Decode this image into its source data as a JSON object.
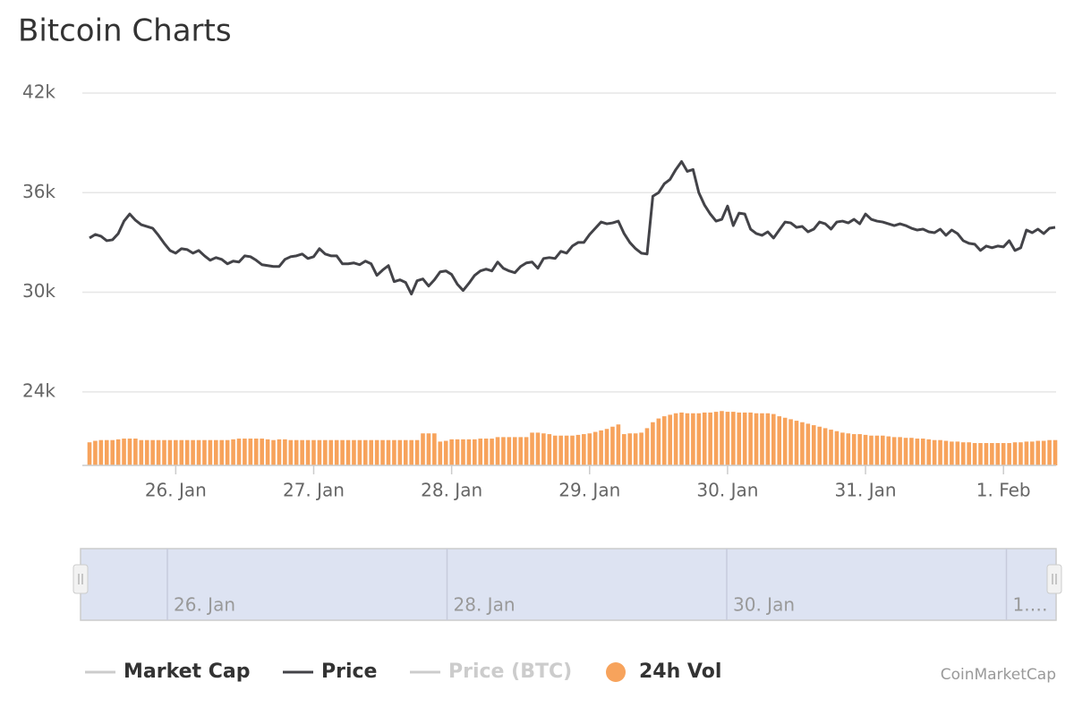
{
  "chart_data": {
    "type": "line",
    "title": "Bitcoin Charts",
    "credit": "CoinMarketCap",
    "categories": [
      null,
      null,
      null,
      null,
      null,
      null,
      null,
      null,
      null,
      null,
      null,
      null,
      null,
      null,
      null,
      "26. Jan",
      null,
      null,
      null,
      null,
      null,
      null,
      null,
      null,
      null,
      null,
      null,
      null,
      null,
      null,
      null,
      null,
      null,
      null,
      null,
      null,
      null,
      null,
      null,
      "27. Jan",
      null,
      null,
      null,
      null,
      null,
      null,
      null,
      null,
      null,
      null,
      null,
      null,
      null,
      null,
      null,
      null,
      null,
      null,
      null,
      null,
      null,
      null,
      null,
      "28. Jan",
      null,
      null,
      null,
      null,
      null,
      null,
      null,
      null,
      null,
      null,
      null,
      null,
      null,
      null,
      null,
      null,
      null,
      null,
      null,
      null,
      null,
      null,
      null,
      "29. Jan",
      null,
      null,
      null,
      null,
      null,
      null,
      null,
      null,
      null,
      null,
      null,
      null,
      null,
      null,
      null,
      null,
      null,
      null,
      null,
      null,
      null,
      null,
      null,
      "30. Jan",
      null,
      null,
      null,
      null,
      null,
      null,
      null,
      null,
      null,
      null,
      null,
      null,
      null,
      null,
      null,
      null,
      null,
      null,
      null,
      null,
      null,
      null,
      null,
      "31. Jan",
      null,
      null,
      null,
      null,
      null,
      null,
      null,
      null,
      null,
      null,
      null,
      null,
      null,
      null,
      null,
      null,
      null,
      null,
      null,
      null,
      null,
      null,
      null,
      "1. Feb",
      null,
      null,
      null,
      null,
      null,
      null,
      null,
      null,
      null
    ],
    "series": [
      {
        "name": "Market Cap",
        "type": "line",
        "color": "#cccccc",
        "enabled": true
      },
      {
        "name": "Price",
        "type": "line",
        "color": "#434348",
        "enabled": true,
        "values": [
          33268,
          33482,
          33375,
          33107,
          33161,
          33536,
          34286,
          34714,
          34339,
          34071,
          33964,
          33857,
          33429,
          32946,
          32518,
          32357,
          32625,
          32571,
          32357,
          32518,
          32196,
          31929,
          32089,
          31982,
          31714,
          31875,
          31821,
          32196,
          32143,
          31929,
          31661,
          31607,
          31554,
          31554,
          31982,
          32143,
          32196,
          32304,
          32036,
          32143,
          32625,
          32304,
          32196,
          32196,
          31714,
          31714,
          31768,
          31661,
          31875,
          31714,
          31018,
          31339,
          31607,
          30643,
          30750,
          30589,
          29893,
          30696,
          30804,
          30375,
          30750,
          31232,
          31286,
          31071,
          30482,
          30107,
          30536,
          31018,
          31286,
          31393,
          31286,
          31821,
          31446,
          31286,
          31179,
          31554,
          31768,
          31821,
          31446,
          32036,
          32089,
          32036,
          32464,
          32357,
          32786,
          33000,
          33000,
          33482,
          33857,
          34232,
          34125,
          34179,
          34286,
          33536,
          33000,
          32625,
          32357,
          32304,
          35785,
          36000,
          36535,
          36803,
          37393,
          37875,
          37285,
          37393,
          36000,
          35250,
          34714,
          34286,
          34393,
          35196,
          34018,
          34768,
          34714,
          33804,
          33536,
          33429,
          33643,
          33268,
          33750,
          34232,
          34179,
          33911,
          33964,
          33643,
          33804,
          34232,
          34125,
          33804,
          34232,
          34286,
          34179,
          34393,
          34125,
          34714,
          34393,
          34286,
          34232,
          34125,
          34018,
          34125,
          34018,
          33857,
          33750,
          33804,
          33643,
          33589,
          33804,
          33429,
          33750,
          33536,
          33107,
          32946,
          32893,
          32518,
          32786,
          32679,
          32786,
          32732,
          33107,
          32518,
          32679,
          33750,
          33589,
          33804,
          33536,
          33857,
          33911
        ]
      },
      {
        "name": "Price (BTC)",
        "type": "line",
        "color": "#cccccc",
        "enabled": false
      },
      {
        "name": "24h Vol",
        "type": "column",
        "color": "#f7a35c",
        "enabled": true,
        "axis": "y2",
        "values": [
          31,
          33,
          34,
          34,
          34,
          35,
          36,
          36,
          36,
          34,
          34,
          34,
          34,
          34,
          34,
          34,
          34,
          34,
          34,
          34,
          34,
          34,
          34,
          34,
          34,
          35,
          36,
          36,
          36,
          36,
          36,
          35,
          34,
          35,
          35,
          34,
          34,
          34,
          34,
          34,
          34,
          34,
          34,
          34,
          34,
          34,
          34,
          34,
          34,
          34,
          34,
          34,
          34,
          34,
          34,
          34,
          34,
          34,
          43,
          43,
          43,
          32,
          33,
          35,
          35,
          35,
          35,
          35,
          36,
          36,
          36,
          38,
          38,
          38,
          38,
          38,
          38,
          44,
          44,
          43,
          42,
          40,
          40,
          40,
          40,
          41,
          42,
          43,
          45,
          47,
          49,
          52,
          55,
          42,
          43,
          43,
          44,
          50,
          58,
          63,
          66,
          68,
          70,
          71,
          70,
          70,
          70,
          71,
          71,
          72,
          73,
          72,
          72,
          71,
          71,
          71,
          70,
          70,
          70,
          69,
          66,
          64,
          62,
          60,
          58,
          56,
          54,
          52,
          50,
          48,
          46,
          44,
          43,
          42,
          42,
          41,
          40,
          40,
          40,
          39,
          38,
          38,
          37,
          37,
          36,
          36,
          35,
          34,
          34,
          33,
          32,
          32,
          31,
          31,
          30,
          30,
          30,
          30,
          30,
          30,
          30,
          31,
          31,
          32,
          32,
          33,
          33,
          34,
          34
        ]
      }
    ],
    "ylim": [
      19570,
      42000
    ],
    "yticks": [
      {
        "value": 24000,
        "label": "24k"
      },
      {
        "value": 30000,
        "label": "30k"
      },
      {
        "value": 36000,
        "label": "36k"
      },
      {
        "value": 42000,
        "label": "42k"
      }
    ],
    "y2lim": [
      0,
      500
    ],
    "grid": true,
    "legend": "bottom",
    "navigator": {
      "labels": [
        "26. Jan",
        "28. Jan",
        "30. Jan",
        "1.…"
      ]
    }
  }
}
